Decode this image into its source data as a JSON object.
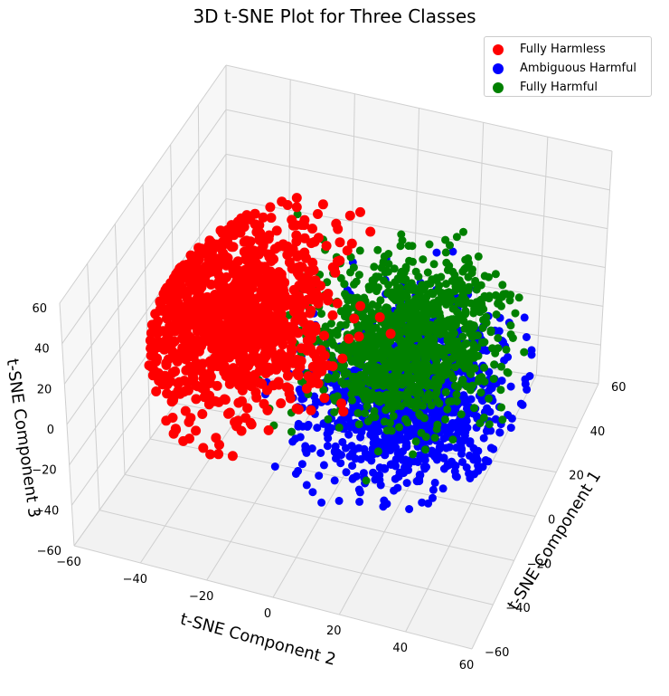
{
  "chart_data": {
    "type": "scatter",
    "projection": "3d",
    "title": "3D t-SNE Plot for Three Classes",
    "xlabel": "t-SNE Component 1",
    "ylabel": "t-SNE Component 2",
    "zlabel": "t-SNE Component 3",
    "xlim": [
      -60,
      60
    ],
    "ylim": [
      -60,
      60
    ],
    "zlim": [
      -60,
      60
    ],
    "xticks": [
      "−60",
      "−40",
      "−20",
      "0",
      "20",
      "40",
      "60"
    ],
    "yticks": [
      "−60",
      "−40",
      "−20",
      "0",
      "20",
      "40",
      "60"
    ],
    "zticks": [
      "−60",
      "−40",
      "−20",
      "0",
      "20",
      "40",
      "60"
    ],
    "grid": true,
    "legend_position": "top-right",
    "series": [
      {
        "name": "Fully Harmless",
        "color": "#ff0000",
        "cluster": {
          "center": [
            -5,
            -30,
            15
          ],
          "spread": [
            30,
            25,
            30
          ],
          "count": 1100
        }
      },
      {
        "name": "Ambiguous Harmful",
        "color": "#0000ff",
        "cluster": {
          "center": [
            0,
            20,
            -15
          ],
          "spread": [
            30,
            25,
            25
          ],
          "count": 1100
        }
      },
      {
        "name": "Fully Harmful",
        "color": "#008000",
        "cluster": {
          "center": [
            -10,
            25,
            30
          ],
          "spread": [
            28,
            25,
            20
          ],
          "count": 1100
        }
      }
    ]
  }
}
